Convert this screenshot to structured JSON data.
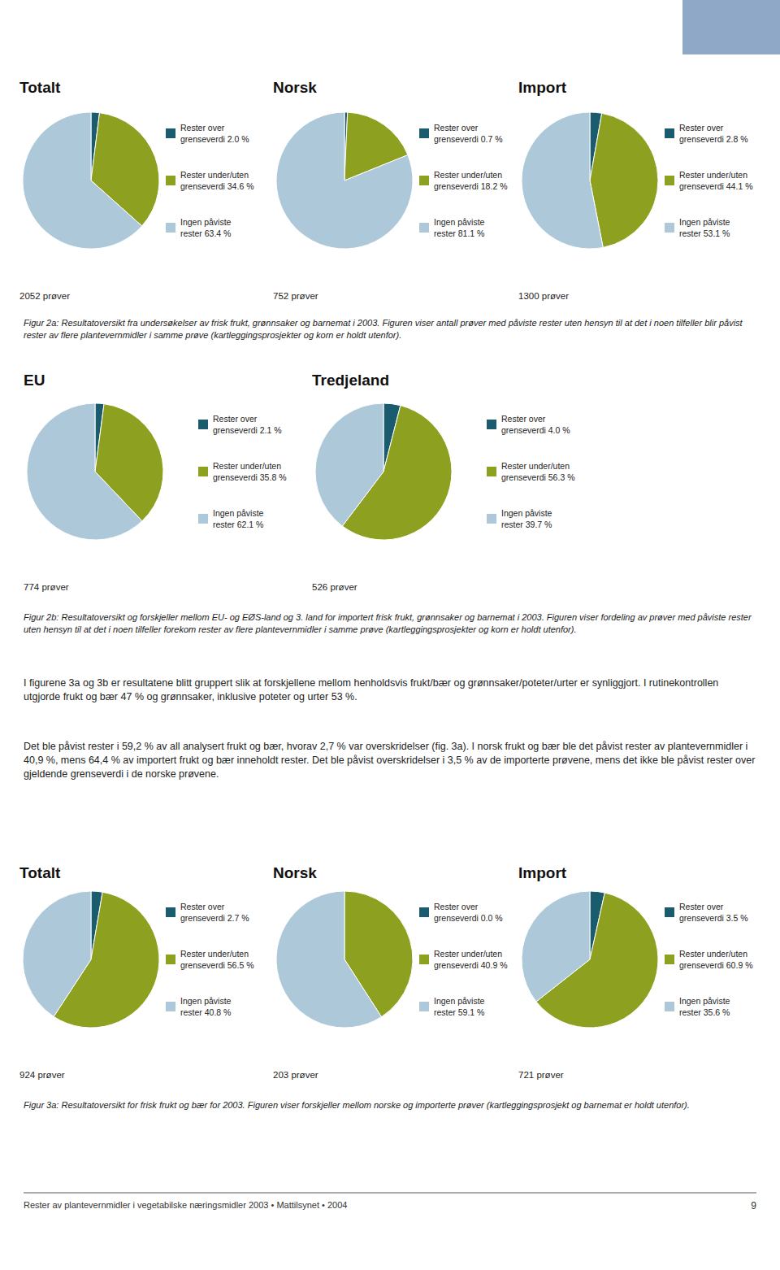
{
  "chart_data": [
    {
      "type": "pie",
      "title": "Totalt",
      "categories": [
        "Rester over\ngrenseverdi 2.0 %",
        "Rester under/uten\ngrenseverdi 34.6 %",
        "Ingen påviste\nrester 63.4 %"
      ],
      "values": [
        2.0,
        34.6,
        63.4
      ],
      "colors": [
        "#1a5c6e",
        "#8da020",
        "#adc8d8"
      ],
      "legend": "right",
      "annotations": [
        "2052 prøver"
      ]
    },
    {
      "type": "pie",
      "title": "Norsk",
      "categories": [
        "Rester over\ngrenseverdi 0.7 %",
        "Rester under/uten\ngrenseverdi 18.2 %",
        "Ingen påviste\nrester 81.1 %"
      ],
      "values": [
        0.7,
        18.2,
        81.1
      ],
      "colors": [
        "#1a5c6e",
        "#8da020",
        "#adc8d8"
      ],
      "legend": "right",
      "annotations": [
        "752 prøver"
      ]
    },
    {
      "type": "pie",
      "title": "Import",
      "categories": [
        "Rester over\ngrenseverdi 2.8 %",
        "Rester under/uten\ngrenseverdi 44.1 %",
        "Ingen påviste\nrester 53.1 %"
      ],
      "values": [
        2.8,
        44.1,
        53.1
      ],
      "colors": [
        "#1a5c6e",
        "#8da020",
        "#adc8d8"
      ],
      "legend": "right",
      "annotations": [
        "1300 prøver"
      ]
    },
    {
      "type": "pie",
      "title": "EU",
      "categories": [
        "Rester over\ngrenseverdi 2.1 %",
        "Rester under/uten\ngrenseverdi 35.8 %",
        "Ingen påviste\nrester 62.1 %"
      ],
      "values": [
        2.1,
        35.8,
        62.1
      ],
      "colors": [
        "#1a5c6e",
        "#8da020",
        "#adc8d8"
      ],
      "legend": "right",
      "annotations": [
        "774 prøver"
      ]
    },
    {
      "type": "pie",
      "title": "Tredjeland",
      "categories": [
        "Rester over\ngrenseverdi 4.0 %",
        "Rester under/uten\ngrenseverdi 56.3 %",
        "Ingen påviste\nrester 39.7 %"
      ],
      "values": [
        4.0,
        56.3,
        39.7
      ],
      "colors": [
        "#1a5c6e",
        "#8da020",
        "#adc8d8"
      ],
      "legend": "right",
      "annotations": [
        "526 prøver"
      ]
    },
    {
      "type": "pie",
      "title": "Totalt",
      "categories": [
        "Rester over\ngrenseverdi 2.7 %",
        "Rester under/uten\ngrenseverdi 56.5 %",
        "Ingen påviste\nrester 40.8 %"
      ],
      "values": [
        2.7,
        56.5,
        40.8
      ],
      "colors": [
        "#1a5c6e",
        "#8da020",
        "#adc8d8"
      ],
      "legend": "right",
      "annotations": [
        "924 prøver"
      ]
    },
    {
      "type": "pie",
      "title": "Norsk",
      "categories": [
        "Rester over\ngrenseverdi 0.0 %",
        "Rester under/uten\ngrenseverdi 40.9 %",
        "Ingen påviste\nrester 59.1 %"
      ],
      "values": [
        0.0,
        40.9,
        59.1
      ],
      "colors": [
        "#1a5c6e",
        "#8da020",
        "#adc8d8"
      ],
      "legend": "right",
      "annotations": [
        "203 prøver"
      ]
    },
    {
      "type": "pie",
      "title": "Import",
      "categories": [
        "Rester over\ngrenseverdi 3.5 %",
        "Rester under/uten\ngrenseverdi 60.9 %",
        "Ingen påviste\nrester 35.6 %"
      ],
      "values": [
        3.5,
        60.9,
        35.6
      ],
      "colors": [
        "#1a5c6e",
        "#8da020",
        "#adc8d8"
      ],
      "legend": "right",
      "annotations": [
        "721 prøver"
      ]
    }
  ],
  "captions": [
    "Figur 2a: Resultatoversikt fra undersøkelser av frisk frukt, grønnsaker og barnemat i 2003. Figuren viser antall prøver med påviste rester uten hensyn til at det i noen tilfeller blir påvist rester av flere plantevernmidler i samme prøve (kartleggingsprosjekter og korn er holdt utenfor).",
    "Figur 2b: Resultatoversikt og forskjeller mellom EU- og EØS-land og 3. land for importert frisk frukt, grønnsaker og barnemat i 2003. Figuren viser fordeling av prøver med påviste rester uten hensyn til at det i noen tilfeller forekom rester av flere plantevernmidler i samme prøve (kartleggingsprosjekter og korn er holdt utenfor).",
    "Figur 3a: Resultatoversikt for frisk frukt og bær for 2003. Figuren viser forskjeller mellom norske og importerte prøver (kartleggingsprosjekt og barnemat er holdt utenfor)."
  ],
  "body_text": [
    "I figurene 3a og 3b er resultatene blitt gruppert slik at forskjellene mellom henholdsvis frukt/bær og grønnsaker/poteter/urter er synliggjort. I rutinekontrollen utgjorde frukt og bær 47 % og grønnsaker, inklusive poteter og urter 53 %.",
    "Det ble påvist rester i 59,2 % av all analysert frukt og bær, hvorav 2,7 % var overskridelser (fig. 3a). I norsk frukt og bær ble det påvist rester av plantevernmidler i 40,9 %, mens 64,4 % av importert frukt og bær inneholdt rester. Det ble påvist overskridelser i 3,5 % av de importerte prøvene, mens det ikke ble påvist rester over gjeldende grenseverdi i de norske prøvene."
  ],
  "footer_text": "Rester av plantevernmidler i vegetabilske næringsmidler 2003 • Mattilsynet • 2004",
  "footer_page": "9"
}
